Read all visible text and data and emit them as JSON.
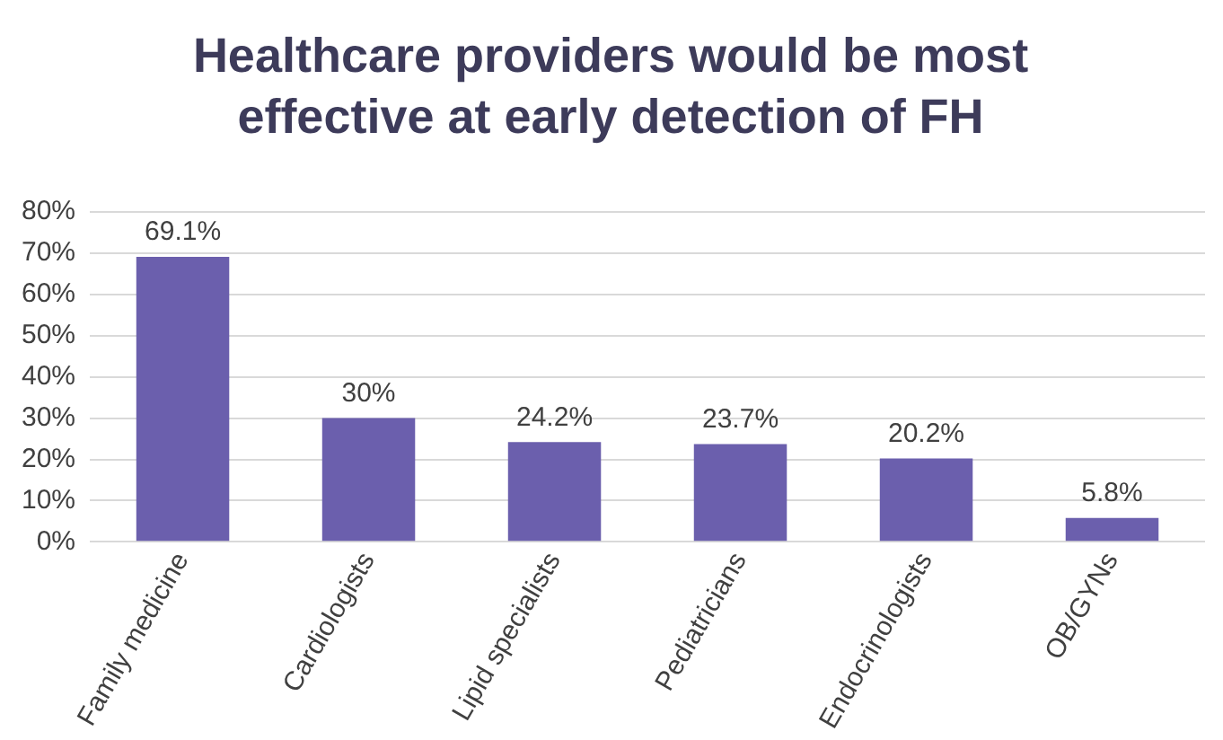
{
  "chart_data": {
    "type": "bar",
    "title": "Healthcare providers would be most effective at early detection of FH",
    "categories": [
      "Family medicine",
      "Cardiologists",
      "Lipid specialists",
      "Pediatricians",
      "Endocrinologists",
      "OB/GYNs"
    ],
    "values": [
      69.1,
      30,
      24.2,
      23.7,
      20.2,
      5.8
    ],
    "value_labels": [
      "69.1%",
      "30%",
      "24.2%",
      "23.7%",
      "20.2%",
      "5.8%"
    ],
    "color": "#6b5fad",
    "ylim": [
      0,
      80
    ],
    "yticks": [
      {
        "value": 0,
        "label": "0%"
      },
      {
        "value": 10,
        "label": "10%"
      },
      {
        "value": 20,
        "label": "20%"
      },
      {
        "value": 30,
        "label": "30%"
      },
      {
        "value": 40,
        "label": "40%"
      },
      {
        "value": 50,
        "label": "50%"
      },
      {
        "value": 60,
        "label": "60%"
      },
      {
        "value": 70,
        "label": "70%"
      },
      {
        "value": 80,
        "label": "80%"
      }
    ],
    "grid": "y",
    "legend": false
  }
}
